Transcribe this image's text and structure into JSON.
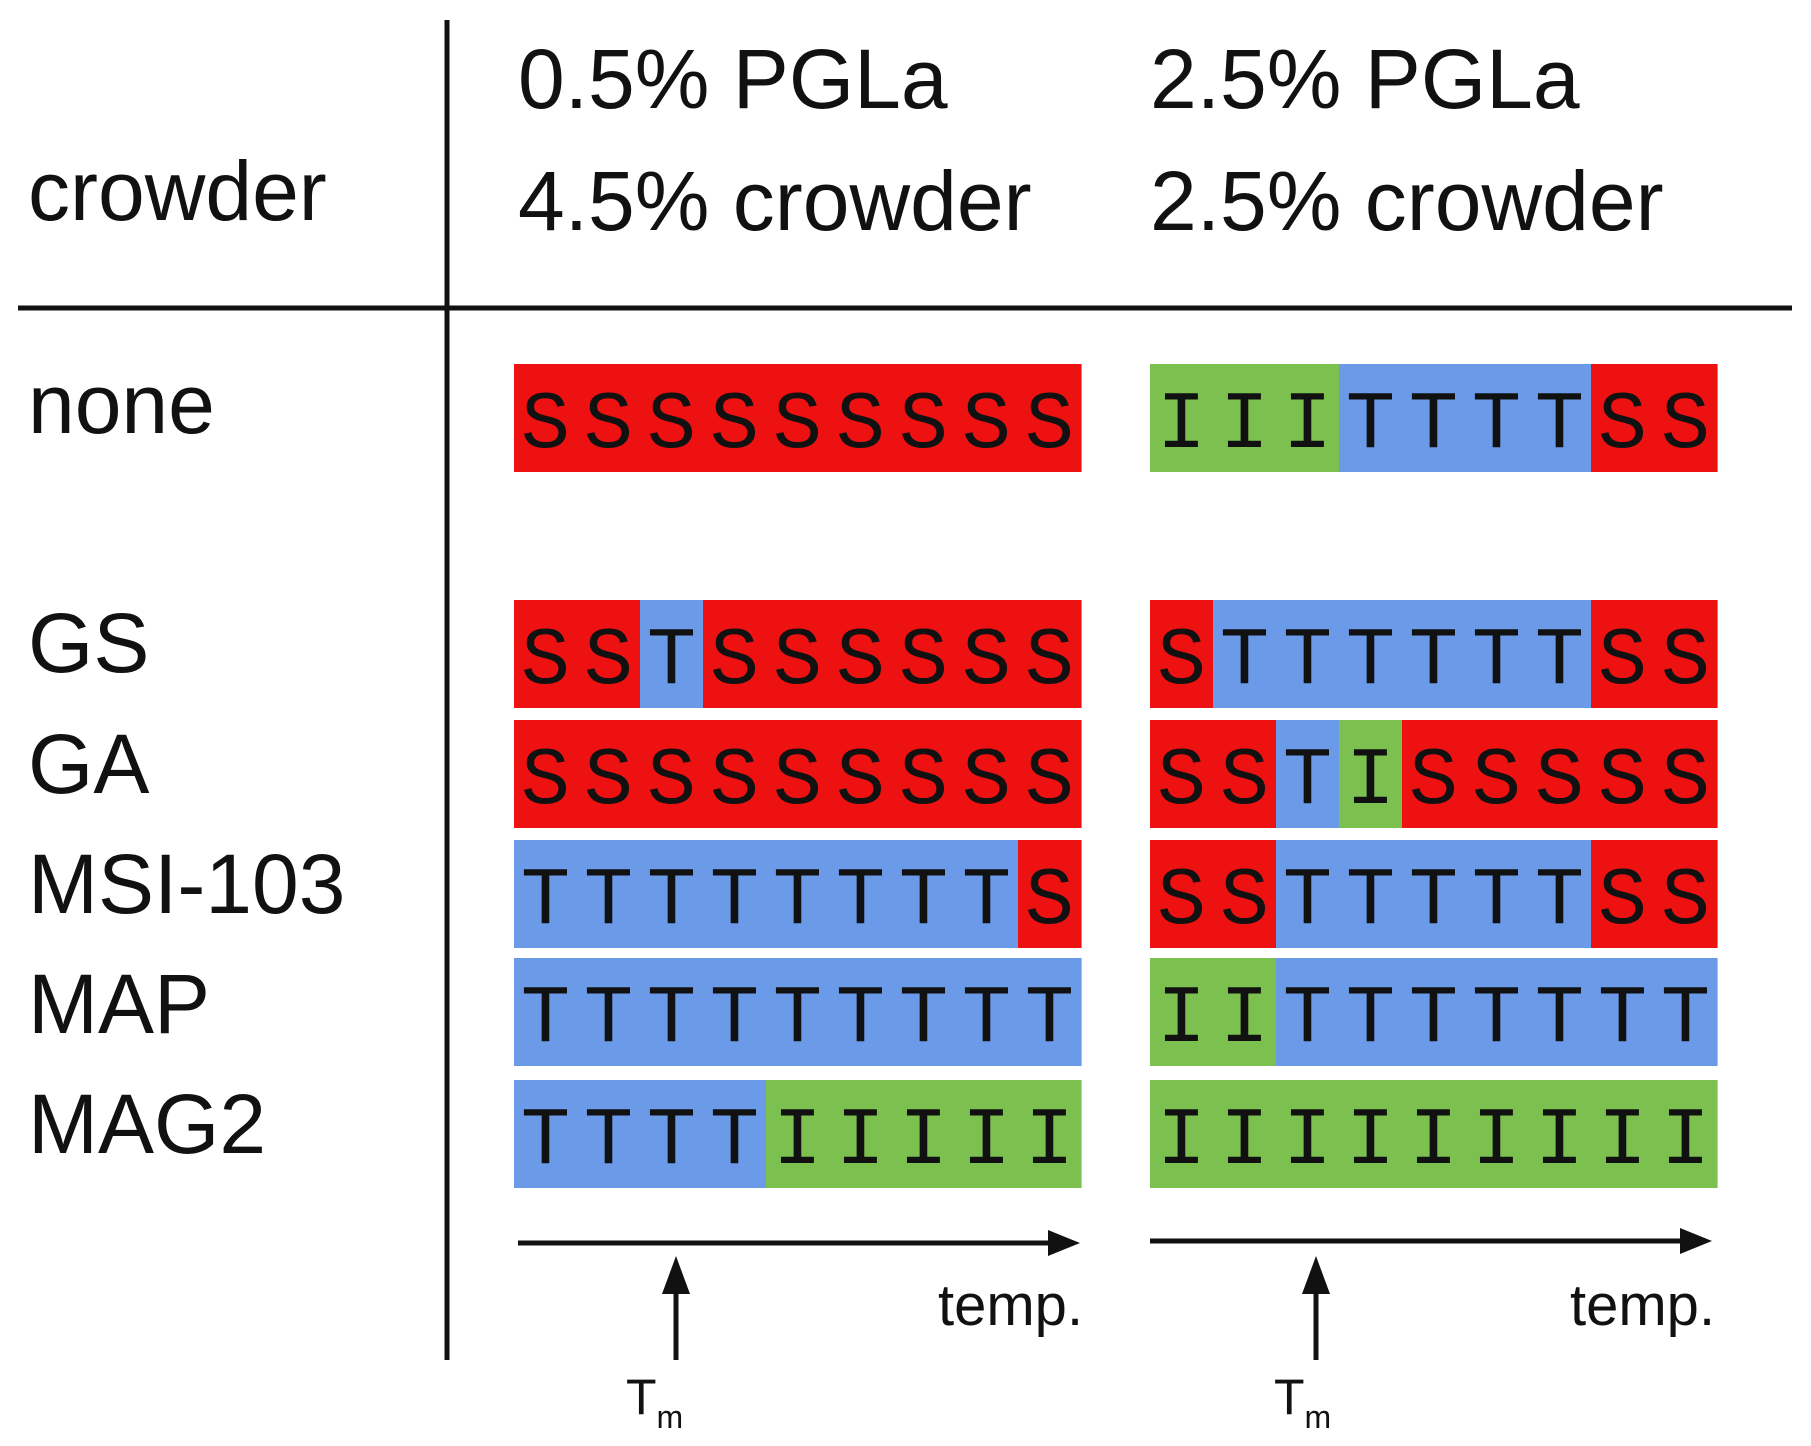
{
  "header": {
    "row_title": "crowder",
    "columns": [
      {
        "line1": "0.5% PGLa",
        "line2": "4.5% crowder"
      },
      {
        "line1": "2.5% PGLa",
        "line2": "2.5% crowder"
      }
    ]
  },
  "rows": [
    {
      "label": "none",
      "left": "SSSSSSSSS",
      "right": "IIITTTTSS"
    },
    {
      "label": "GS",
      "left": "SSTSSSSSS",
      "right": "STTTTTTSS"
    },
    {
      "label": "GA",
      "left": "SSSSSSSSS",
      "right": "SSTISSSSS"
    },
    {
      "label": "MSI-103",
      "left": "TTTTTTTTS",
      "right": "SSTTTTTSS"
    },
    {
      "label": "MAP",
      "left": "TTTTTTTTT",
      "right": "IITTTTTTT"
    },
    {
      "label": "MAG2",
      "left": "TTTTIIIII",
      "right": "IIIIIIIII"
    }
  ],
  "state_colors": {
    "S": "#ee1111",
    "T": "#6a9ae8",
    "I": "#7cc14f"
  },
  "axis": {
    "label": "temp.",
    "marker_main": "T",
    "marker_sub": "m"
  }
}
